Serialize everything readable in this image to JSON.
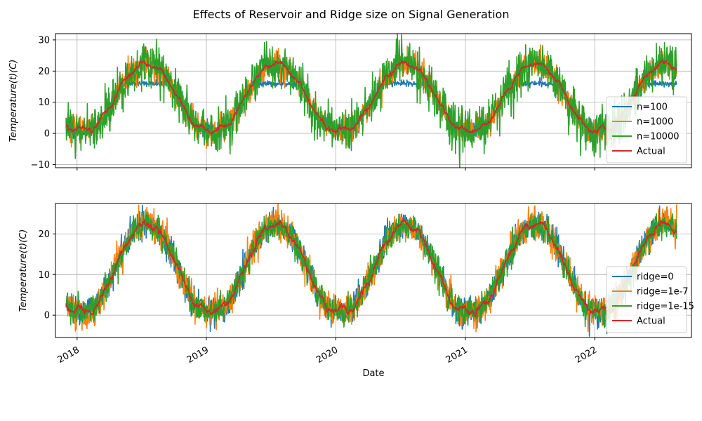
{
  "figure": {
    "suptitle": "Effects of Reservoir and Ridge size on Signal Generation"
  },
  "chart_data": [
    {
      "type": "line",
      "ylabel": "Temperature(t)(C)",
      "xlabel": "",
      "xlim": [
        "2017-11-01",
        "2022-10-01"
      ],
      "ylim": [
        -11,
        32
      ],
      "yticks": [
        -10,
        0,
        10,
        20,
        30
      ],
      "xticks": [
        "2018-01-01",
        "2019-01-01",
        "2020-01-01",
        "2021-01-01",
        "2022-01-01"
      ],
      "xtick_labels": [
        "2018",
        "2019",
        "2020",
        "2021",
        "2022"
      ],
      "show_xtick_labels": false,
      "grid": true,
      "legend_position": "lower-right",
      "date_range": [
        "2017-12-01",
        "2022-08-20"
      ],
      "series": [
        {
          "name": "n=100",
          "color": "#1f77b4",
          "model": "clipped",
          "clip": [
            0,
            16
          ],
          "noise": 1.2
        },
        {
          "name": "n=1000",
          "color": "#ff7f0e",
          "model": "noisy",
          "noise": 2.2
        },
        {
          "name": "n=10000",
          "color": "#2ca02c",
          "model": "noisy",
          "noise": 3.6
        },
        {
          "name": "Actual",
          "color": "#d62728",
          "model": "actual",
          "noise": 0.9
        }
      ]
    },
    {
      "type": "line",
      "ylabel": "Temperature(t)(C)",
      "xlabel": "Date",
      "xlim": [
        "2017-11-01",
        "2022-10-01"
      ],
      "ylim": [
        -5.5,
        27.5
      ],
      "yticks": [
        0,
        10,
        20
      ],
      "xticks": [
        "2018-01-01",
        "2019-01-01",
        "2020-01-01",
        "2021-01-01",
        "2022-01-01"
      ],
      "xtick_labels": [
        "2018",
        "2019",
        "2020",
        "2021",
        "2022"
      ],
      "show_xtick_labels": true,
      "grid": true,
      "legend_position": "lower-right",
      "date_range": [
        "2017-12-01",
        "2022-08-20"
      ],
      "series": [
        {
          "name": "ridge=0",
          "color": "#1f77b4",
          "model": "noisy",
          "noise": 1.8
        },
        {
          "name": "ridge=1e-7",
          "color": "#ff7f0e",
          "model": "noisy",
          "noise": 2.0
        },
        {
          "name": "ridge=1e-15",
          "color": "#2ca02c",
          "model": "noisy",
          "noise": 1.7
        },
        {
          "name": "Actual",
          "color": "#d62728",
          "model": "actual",
          "noise": 0.9
        }
      ]
    }
  ]
}
